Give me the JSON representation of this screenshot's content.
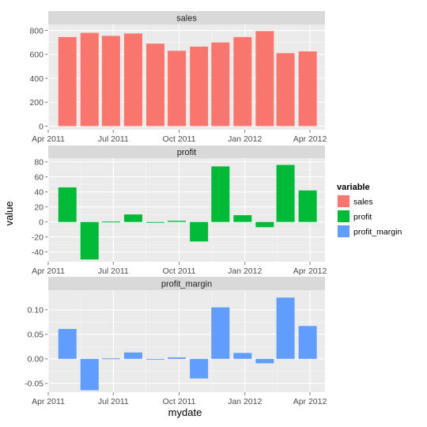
{
  "chart_data": {
    "type": "bar",
    "layout": "faceted-vertical",
    "xlabel": "mydate",
    "ylabel": "value",
    "x_ticks": [
      "Apr 2011",
      "Jul 2011",
      "Oct 2011",
      "Jan 2012",
      "Apr 2012"
    ],
    "x_tick_dates": [
      "2011-04-01",
      "2011-07-01",
      "2011-10-01",
      "2012-01-01",
      "2012-04-01"
    ],
    "xlim": [
      "2011-04-01",
      "2012-04-22"
    ],
    "dates": [
      "2011-04-30",
      "2011-05-31",
      "2011-06-30",
      "2011-07-31",
      "2011-08-31",
      "2011-09-30",
      "2011-10-31",
      "2011-11-30",
      "2011-12-31",
      "2012-01-31",
      "2012-02-29",
      "2012-03-31"
    ],
    "legend": {
      "title": "variable",
      "position": "right",
      "entries": [
        "sales",
        "profit",
        "profit_margin"
      ]
    },
    "grid": true,
    "facets": [
      {
        "name": "sales",
        "color": "#F8766D",
        "ylim": [
          -30,
          850
        ],
        "y_ticks": [
          0,
          200,
          400,
          600,
          800
        ],
        "y_tick_labels": [
          "0",
          "200",
          "400",
          "600",
          "800"
        ],
        "values": [
          745,
          780,
          755,
          775,
          690,
          630,
          665,
          700,
          745,
          795,
          610,
          625
        ]
      },
      {
        "name": "profit",
        "color": "#00BA38",
        "ylim": [
          -53,
          85
        ],
        "y_ticks": [
          -40,
          -20,
          0,
          20,
          40,
          60,
          80
        ],
        "y_tick_labels": [
          "-40",
          "-20",
          "0",
          "20",
          "40",
          "60",
          "80"
        ],
        "values": [
          46,
          -50,
          0.5,
          10,
          0,
          1.5,
          -26,
          74,
          9,
          -7,
          76,
          42
        ]
      },
      {
        "name": "profit_margin",
        "color": "#619CFF",
        "ylim": [
          -0.068,
          0.14
        ],
        "y_ticks": [
          -0.05,
          0,
          0.05,
          0.1
        ],
        "y_tick_labels": [
          "-0.05",
          "0.00",
          "0.05",
          "0.10"
        ],
        "values": [
          0.061,
          -0.064,
          0.001,
          0.013,
          0.0,
          0.003,
          -0.04,
          0.105,
          0.012,
          -0.009,
          0.125,
          0.067
        ]
      }
    ]
  }
}
